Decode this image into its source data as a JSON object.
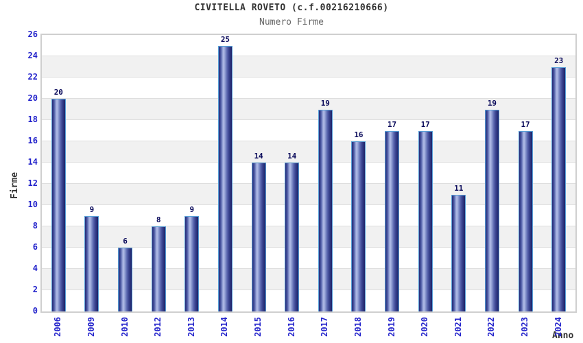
{
  "chart_data": {
    "type": "bar",
    "title": "CIVITELLA ROVETO (c.f.00216210666)",
    "subtitle": "Numero Firme",
    "xlabel": "Anno",
    "ylabel": "Firme",
    "categories": [
      "2006",
      "2009",
      "2010",
      "2012",
      "2013",
      "2014",
      "2015",
      "2016",
      "2017",
      "2018",
      "2019",
      "2020",
      "2021",
      "2022",
      "2023",
      "2024"
    ],
    "values": [
      20,
      9,
      6,
      8,
      9,
      25,
      14,
      14,
      19,
      16,
      17,
      17,
      11,
      19,
      17,
      23
    ],
    "ylim": [
      0,
      26
    ],
    "ytick_step": 2,
    "grid": "horizontal-bands",
    "legend": "none",
    "colors": {
      "tick_label": "#2323cb",
      "value_label": "#09095a",
      "title": "#333333",
      "subtitle": "#666666",
      "band_alt": "#f1f1f1",
      "gridline": "#dedede",
      "plot_border": "#cfcfcf",
      "bar_border": "#58a0d8",
      "bar_gradient": [
        [
          "#242b76",
          "0%"
        ],
        [
          "#4a57a2",
          "15%"
        ],
        [
          "#9aa7da",
          "30%"
        ],
        [
          "#b3bee8",
          "37%"
        ],
        [
          "#8795cd",
          "50%"
        ],
        [
          "#5b68b0",
          "63%"
        ],
        [
          "#39438f",
          "78%"
        ],
        [
          "#1c2268",
          "100%"
        ]
      ]
    }
  }
}
